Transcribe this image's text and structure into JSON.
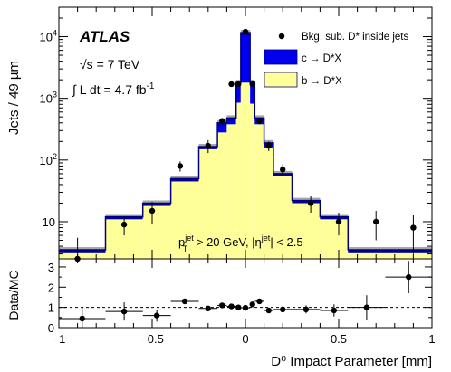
{
  "chart_data": [
    {
      "type": "histogram",
      "experiment_label": "ATLAS",
      "energy_text": "√s = 7 TeV",
      "lumi_prefix": "∫ L dt = 4.7 fb",
      "lumi_exponent": "-1",
      "cut_text_parts": [
        "p",
        "jet",
        "T",
        " > 20 GeV, |η",
        "jet",
        "| < 2.5"
      ],
      "ylabel": "Jets / 49 µm",
      "yscale": "log",
      "ylim": [
        2.5,
        30000
      ],
      "xlim": [
        -1.0,
        1.0
      ],
      "y_tick_labels": [
        "10",
        "10",
        "10",
        "10"
      ],
      "y_tick_exponents": [
        "",
        "2",
        "3",
        "4"
      ],
      "y_tick_values": [
        10,
        100,
        1000,
        10000
      ],
      "colors": {
        "c_fill": "#0000ee",
        "b_fill": "#ffff99",
        "line": "#000080"
      },
      "legend": {
        "position": "top-right",
        "entries": [
          {
            "label": "Bkg. sub. D* inside jets",
            "kind": "marker"
          },
          {
            "label": "c → D*X",
            "kind": "fill",
            "color": "#0000ee"
          },
          {
            "label": "b → D*X",
            "kind": "fill",
            "color": "#ffff99"
          }
        ]
      },
      "bin_edges": [
        -1.0,
        -0.75,
        -0.55,
        -0.4,
        -0.25,
        -0.15,
        -0.1,
        -0.05,
        -0.025,
        0.025,
        0.05,
        0.1,
        0.15,
        0.25,
        0.4,
        0.55,
        0.75,
        1.0
      ],
      "b_values": [
        3.2,
        11,
        18,
        45,
        150,
        280,
        380,
        850,
        1800,
        820,
        380,
        160,
        55,
        20,
        11,
        3.2,
        3.2
      ],
      "c_values": [
        0.3,
        1,
        2,
        5,
        15,
        120,
        100,
        950,
        9800,
        1000,
        100,
        30,
        5,
        2,
        1,
        0.3,
        0.3
      ],
      "data_x": [
        -0.9,
        -0.65,
        -0.5,
        -0.35,
        -0.2,
        -0.125,
        -0.075,
        -0.0375,
        0.0,
        0.0375,
        0.075,
        0.125,
        0.2,
        0.35,
        0.5,
        0.7,
        0.9
      ],
      "data_y": [
        2.5,
        9,
        15,
        80,
        170,
        430,
        1700,
        1700,
        12000,
        1700,
        430,
        170,
        70,
        20,
        10,
        10,
        8
      ],
      "data_yerr": [
        3,
        3,
        6,
        15,
        40,
        50,
        100,
        100,
        300,
        100,
        50,
        30,
        15,
        6,
        4,
        5,
        5
      ]
    },
    {
      "type": "ratio",
      "ylabel": "Data/MC",
      "xlabel": "D⁰ Impact Parameter [mm]",
      "ylim": [
        0,
        3.4
      ],
      "reference_line": 1.0,
      "y_ticks": [
        0,
        1,
        2,
        3
      ],
      "y_tick_labels": [
        "0",
        "1",
        "2",
        "3"
      ],
      "x_ticks": [
        -1,
        -0.5,
        0,
        0.5,
        1
      ],
      "x_tick_labels": [
        "−1",
        "−0.5",
        "0",
        "0.5",
        "1"
      ],
      "x": [
        -0.875,
        -0.65,
        -0.475,
        -0.325,
        -0.2,
        -0.125,
        -0.075,
        -0.0375,
        0.0,
        0.0375,
        0.075,
        0.125,
        0.2,
        0.325,
        0.475,
        0.65,
        0.875
      ],
      "x_halfwidth": [
        0.125,
        0.1,
        0.075,
        0.075,
        0.05,
        0.025,
        0.025,
        0.0125,
        0.025,
        0.0125,
        0.025,
        0.025,
        0.05,
        0.075,
        0.075,
        0.1,
        0.125
      ],
      "y": [
        0.45,
        0.8,
        0.6,
        1.3,
        0.95,
        1.1,
        1.05,
        1.0,
        0.98,
        1.15,
        1.3,
        0.85,
        0.9,
        0.9,
        0.85,
        1.0,
        2.5
      ],
      "yerr": [
        0.6,
        0.45,
        0.3,
        0.12,
        0.08,
        0.06,
        0.05,
        0.04,
        0.03,
        0.04,
        0.06,
        0.08,
        0.1,
        0.2,
        0.3,
        0.6,
        0.8
      ]
    }
  ]
}
